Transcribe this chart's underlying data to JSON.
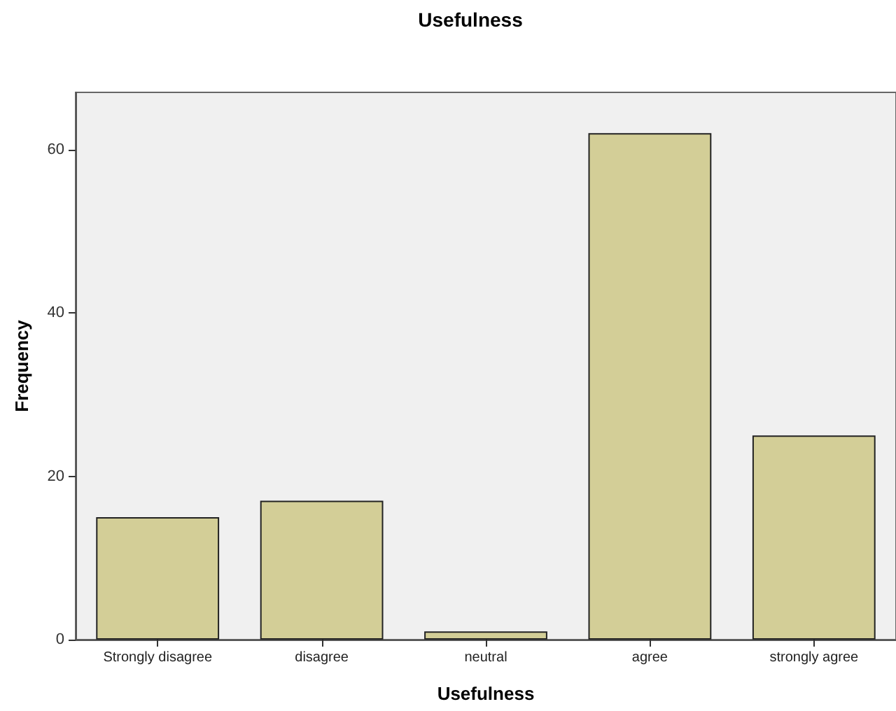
{
  "chart_data": {
    "type": "bar",
    "title": "Usefulness",
    "xlabel": "Usefulness",
    "ylabel": "Frequency",
    "categories": [
      "Strongly disagree",
      "disagree",
      "neutral",
      "agree",
      "strongly agree"
    ],
    "values": [
      15,
      17,
      1,
      62,
      25
    ],
    "color": "#d3ce97",
    "ylim": [
      0,
      67
    ],
    "yticks": [
      0,
      20,
      40,
      60
    ]
  }
}
